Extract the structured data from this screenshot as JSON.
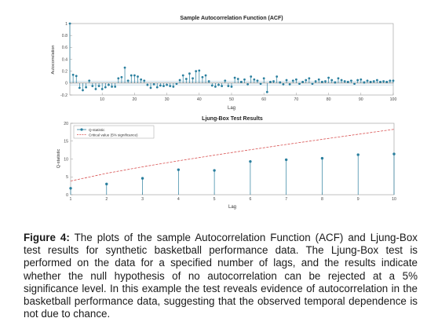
{
  "chart_data": [
    {
      "type": "stem",
      "title": "Sample Autocorrelation Function (ACF)",
      "xlabel": "Lag",
      "ylabel": "Autocorrelation",
      "xlim": [
        0,
        100
      ],
      "ylim": [
        -0.2,
        1
      ],
      "xticks": [
        "10",
        "20",
        "30",
        "40",
        "50",
        "60",
        "70",
        "80",
        "90",
        "100"
      ],
      "yticks": [
        "-0.2",
        "0",
        "0.2",
        "0.4",
        "0.6",
        "0.8",
        "1"
      ],
      "confidence_bound": 0.03,
      "lags": [
        0,
        1,
        2,
        3,
        4,
        5,
        6,
        7,
        8,
        9,
        10,
        11,
        12,
        13,
        14,
        15,
        16,
        17,
        18,
        19,
        20,
        21,
        22,
        23,
        24,
        25,
        26,
        27,
        28,
        29,
        30,
        31,
        32,
        33,
        34,
        35,
        36,
        37,
        38,
        39,
        40,
        41,
        42,
        43,
        44,
        45,
        46,
        47,
        48,
        49,
        50,
        51,
        52,
        53,
        54,
        55,
        56,
        57,
        58,
        59,
        60,
        61,
        62,
        63,
        64,
        65,
        66,
        67,
        68,
        69,
        70,
        71,
        72,
        73,
        74,
        75,
        76,
        77,
        78,
        79,
        80,
        81,
        82,
        83,
        84,
        85,
        86,
        87,
        88,
        89,
        90,
        91,
        92,
        93,
        94,
        95,
        96,
        97,
        98,
        99,
        100
      ],
      "values": [
        1.0,
        0.14,
        0.12,
        -0.08,
        -0.12,
        -0.07,
        0.04,
        -0.05,
        -0.1,
        -0.05,
        -0.1,
        -0.07,
        -0.03,
        -0.06,
        -0.06,
        0.08,
        0.1,
        0.26,
        0.04,
        0.13,
        0.13,
        0.11,
        0.06,
        0.04,
        -0.03,
        -0.08,
        -0.02,
        -0.07,
        -0.04,
        -0.05,
        -0.03,
        -0.05,
        -0.06,
        -0.01,
        0.05,
        0.13,
        0.07,
        0.16,
        0.08,
        0.2,
        0.21,
        0.1,
        0.13,
        0.03,
        -0.04,
        -0.06,
        -0.03,
        -0.05,
        0.04,
        -0.05,
        -0.06,
        0.09,
        0.07,
        0.02,
        0.06,
        -0.02,
        0.11,
        0.06,
        0.04,
        -0.01,
        0.08,
        -0.15,
        0.02,
        0.03,
        0.11,
        0.01,
        -0.02,
        0.05,
        -0.02,
        0.04,
        0.06,
        -0.01,
        0.02,
        0.05,
        0.08,
        -0.01,
        0.03,
        0.06,
        0.02,
        0.03,
        0.09,
        0.05,
        0.01,
        0.08,
        0.05,
        0.03,
        0.02,
        0.04,
        -0.01,
        0.05,
        0.06,
        0.01,
        0.04,
        0.02,
        0.03,
        0.05,
        0.02,
        0.03,
        0.02,
        0.04,
        0.04
      ]
    },
    {
      "type": "stem",
      "title": "Ljung-Box Test Results",
      "xlabel": "Lag",
      "ylabel": "Q-statistic",
      "xlim": [
        1,
        10
      ],
      "ylim": [
        0,
        20
      ],
      "xticks": [
        "1",
        "2",
        "3",
        "4",
        "5",
        "6",
        "7",
        "8",
        "9",
        "10"
      ],
      "yticks": [
        "0",
        "5",
        "10",
        "15",
        "20"
      ],
      "legend_placement": "top-left",
      "series": [
        {
          "name": "Q-statistic",
          "color": "#2a7f9e",
          "x": [
            1,
            2,
            3,
            4,
            5,
            6,
            7,
            8,
            9,
            10
          ],
          "values": [
            1.8,
            3.0,
            4.6,
            7.0,
            6.8,
            9.3,
            9.8,
            10.2,
            11.2,
            11.4
          ]
        },
        {
          "name": "Critical value (5% significance)",
          "color": "#d85050",
          "style": "dashed",
          "x": [
            1,
            2,
            3,
            4,
            5,
            6,
            7,
            8,
            9,
            10
          ],
          "values": [
            3.84,
            5.99,
            7.81,
            9.49,
            11.07,
            12.59,
            14.07,
            15.51,
            16.92,
            18.31
          ]
        }
      ]
    }
  ],
  "caption": {
    "label": "Figure 4:",
    "text": " The plots of the sample Autocorrelation Function (ACF) and Ljung-Box test results for synthetic basketball performance data. The Ljung-Box test is performed on the data for a specified number of lags, and the results indicate whether the null hypothesis of no autocorrelation can be rejected at a 5% significance level. In this example the test reveals evidence of autocorrelation in the basketball performance data, suggesting that the observed temporal dependence is not due to chance."
  }
}
